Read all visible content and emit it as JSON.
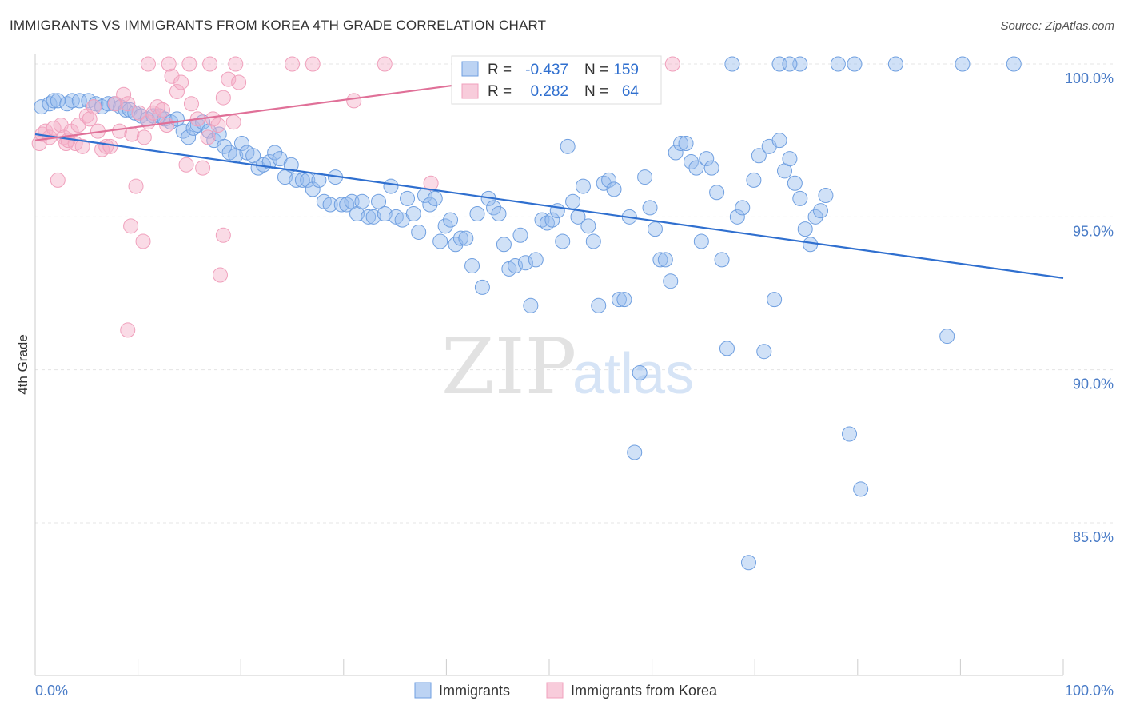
{
  "title": "IMMIGRANTS VS IMMIGRANTS FROM KOREA 4TH GRADE CORRELATION CHART",
  "source": "Source: ZipAtlas.com",
  "watermark": {
    "zip": "ZIP",
    "atlas": "atlas"
  },
  "colors": {
    "blue": "#6f9fe0",
    "blue_line": "#2f6fcf",
    "pink": "#f0a0bc",
    "pink_line": "#e07098",
    "value_blue": "#2f6fcf"
  },
  "stats": [
    {
      "r_label": "R =",
      "r_value": "-0.437",
      "n_label": "N =",
      "n_value": "159"
    },
    {
      "r_label": "R =",
      "r_value": "0.282",
      "n_label": "N =",
      "n_value": "64"
    }
  ],
  "chart_data": {
    "type": "scatter",
    "xlabel": "",
    "ylabel": "4th Grade",
    "xlim": [
      0,
      100
    ],
    "ylim": [
      80.5,
      100.5
    ],
    "x_tick_labels": [
      "0.0%",
      "100.0%"
    ],
    "y_ticks": [
      {
        "value": 100,
        "label": "100.0%"
      },
      {
        "value": 95,
        "label": "95.0%"
      },
      {
        "value": 90,
        "label": "90.0%"
      },
      {
        "value": 85,
        "label": "85.0%"
      }
    ],
    "grid": true,
    "legend_position": "bottom-center",
    "series": [
      {
        "name": "Immigrants",
        "color": "#6f9fe0",
        "trend": {
          "x": [
            0,
            100
          ],
          "y": [
            97.7,
            93.0
          ]
        },
        "points": [
          [
            0.6,
            98.6
          ],
          [
            1.4,
            98.7
          ],
          [
            1.8,
            98.8
          ],
          [
            2.2,
            98.8
          ],
          [
            3.1,
            98.7
          ],
          [
            3.6,
            98.8
          ],
          [
            4.3,
            98.8
          ],
          [
            5.2,
            98.8
          ],
          [
            5.9,
            98.7
          ],
          [
            6.5,
            98.6
          ],
          [
            7.1,
            98.7
          ],
          [
            7.7,
            98.7
          ],
          [
            8.3,
            98.6
          ],
          [
            8.8,
            98.5
          ],
          [
            9.2,
            98.5
          ],
          [
            9.7,
            98.4
          ],
          [
            10.3,
            98.3
          ],
          [
            10.9,
            98.2
          ],
          [
            11.5,
            98.3
          ],
          [
            12.1,
            98.3
          ],
          [
            12.6,
            98.2
          ],
          [
            13.2,
            98.1
          ],
          [
            13.8,
            98.2
          ],
          [
            14.4,
            97.8
          ],
          [
            14.9,
            97.6
          ],
          [
            15.4,
            97.9
          ],
          [
            15.8,
            98.0
          ],
          [
            16.3,
            98.1
          ],
          [
            16.9,
            97.8
          ],
          [
            17.4,
            97.5
          ],
          [
            17.9,
            97.7
          ],
          [
            18.4,
            97.3
          ],
          [
            18.9,
            97.1
          ],
          [
            19.5,
            97.0
          ],
          [
            20.1,
            97.4
          ],
          [
            20.6,
            97.1
          ],
          [
            21.2,
            97.0
          ],
          [
            21.7,
            96.6
          ],
          [
            22.2,
            96.7
          ],
          [
            22.8,
            96.8
          ],
          [
            23.3,
            97.1
          ],
          [
            23.8,
            96.9
          ],
          [
            24.3,
            96.3
          ],
          [
            24.9,
            96.7
          ],
          [
            25.4,
            96.2
          ],
          [
            26.0,
            96.2
          ],
          [
            26.5,
            96.2
          ],
          [
            27.0,
            95.9
          ],
          [
            27.6,
            96.2
          ],
          [
            28.1,
            95.5
          ],
          [
            28.7,
            95.4
          ],
          [
            29.2,
            96.3
          ],
          [
            29.8,
            95.4
          ],
          [
            30.3,
            95.4
          ],
          [
            30.8,
            95.5
          ],
          [
            31.3,
            95.1
          ],
          [
            31.8,
            95.5
          ],
          [
            32.4,
            95.0
          ],
          [
            32.9,
            95.0
          ],
          [
            33.4,
            95.5
          ],
          [
            34.0,
            95.1
          ],
          [
            34.6,
            96.0
          ],
          [
            35.1,
            95.0
          ],
          [
            35.7,
            94.9
          ],
          [
            36.2,
            95.6
          ],
          [
            36.8,
            95.1
          ],
          [
            37.3,
            94.5
          ],
          [
            37.9,
            95.7
          ],
          [
            38.4,
            95.4
          ],
          [
            38.9,
            95.6
          ],
          [
            39.4,
            94.2
          ],
          [
            39.9,
            94.7
          ],
          [
            40.4,
            94.9
          ],
          [
            40.9,
            94.1
          ],
          [
            41.4,
            94.3
          ],
          [
            41.9,
            94.3
          ],
          [
            42.5,
            93.4
          ],
          [
            43.0,
            95.1
          ],
          [
            43.5,
            92.7
          ],
          [
            44.1,
            95.6
          ],
          [
            44.6,
            95.3
          ],
          [
            45.1,
            95.1
          ],
          [
            45.6,
            94.1
          ],
          [
            46.1,
            93.3
          ],
          [
            46.7,
            93.4
          ],
          [
            47.2,
            94.4
          ],
          [
            47.7,
            93.5
          ],
          [
            48.2,
            92.1
          ],
          [
            48.7,
            93.6
          ],
          [
            49.3,
            94.9
          ],
          [
            49.8,
            94.8
          ],
          [
            50.3,
            94.9
          ],
          [
            50.8,
            95.2
          ],
          [
            51.3,
            94.2
          ],
          [
            51.8,
            97.3
          ],
          [
            52.3,
            95.5
          ],
          [
            52.8,
            95.0
          ],
          [
            53.3,
            96.0
          ],
          [
            53.8,
            94.7
          ],
          [
            54.3,
            94.2
          ],
          [
            54.8,
            92.1
          ],
          [
            55.3,
            96.1
          ],
          [
            55.8,
            96.2
          ],
          [
            56.3,
            95.9
          ],
          [
            56.8,
            92.3
          ],
          [
            57.3,
            92.3
          ],
          [
            57.8,
            95.0
          ],
          [
            58.3,
            87.3
          ],
          [
            58.8,
            89.9
          ],
          [
            59.3,
            96.3
          ],
          [
            59.8,
            95.3
          ],
          [
            60.3,
            94.6
          ],
          [
            60.8,
            93.6
          ],
          [
            61.3,
            93.6
          ],
          [
            61.8,
            92.9
          ],
          [
            62.3,
            97.1
          ],
          [
            62.8,
            97.4
          ],
          [
            63.3,
            97.4
          ],
          [
            63.8,
            96.8
          ],
          [
            64.3,
            96.6
          ],
          [
            64.8,
            94.2
          ],
          [
            65.3,
            96.9
          ],
          [
            65.8,
            96.6
          ],
          [
            66.3,
            95.8
          ],
          [
            66.8,
            93.6
          ],
          [
            67.3,
            90.7
          ],
          [
            67.8,
            100.0
          ],
          [
            68.3,
            95.0
          ],
          [
            68.8,
            95.3
          ],
          [
            69.4,
            83.7
          ],
          [
            69.9,
            96.2
          ],
          [
            70.4,
            97.0
          ],
          [
            70.9,
            90.6
          ],
          [
            71.4,
            97.3
          ],
          [
            71.9,
            92.3
          ],
          [
            72.4,
            97.5
          ],
          [
            72.9,
            96.5
          ],
          [
            73.4,
            96.9
          ],
          [
            73.9,
            96.1
          ],
          [
            74.4,
            95.6
          ],
          [
            74.9,
            94.6
          ],
          [
            75.4,
            94.1
          ],
          [
            75.9,
            95.0
          ],
          [
            76.4,
            95.2
          ],
          [
            76.9,
            95.7
          ],
          [
            78.1,
            100.0
          ],
          [
            79.2,
            87.9
          ],
          [
            79.7,
            100.0
          ],
          [
            80.3,
            86.1
          ],
          [
            83.7,
            100.0
          ],
          [
            88.7,
            91.1
          ],
          [
            90.2,
            100.0
          ],
          [
            95.2,
            100.0
          ],
          [
            74.4,
            100.0
          ],
          [
            72.4,
            100.0
          ],
          [
            73.4,
            100.0
          ],
          [
            45.8,
            100.0
          ],
          [
            42.9,
            100.0
          ],
          [
            48.7,
            99.4
          ]
        ]
      },
      {
        "name": "Immigrants from Korea",
        "color": "#f0a0bc",
        "trend": {
          "x": [
            0,
            56.5
          ],
          "y": [
            97.5,
            100.0
          ]
        },
        "points": [
          [
            0.4,
            97.4
          ],
          [
            0.7,
            97.7
          ],
          [
            1.0,
            97.8
          ],
          [
            1.4,
            97.6
          ],
          [
            1.8,
            97.9
          ],
          [
            2.2,
            96.2
          ],
          [
            2.5,
            98.0
          ],
          [
            2.8,
            97.6
          ],
          [
            3.0,
            97.4
          ],
          [
            3.2,
            97.5
          ],
          [
            3.5,
            97.8
          ],
          [
            3.9,
            97.4
          ],
          [
            4.2,
            98.0
          ],
          [
            4.6,
            97.3
          ],
          [
            5.0,
            98.3
          ],
          [
            5.3,
            98.2
          ],
          [
            5.7,
            98.6
          ],
          [
            6.1,
            97.8
          ],
          [
            6.5,
            97.2
          ],
          [
            6.9,
            97.3
          ],
          [
            7.3,
            97.3
          ],
          [
            7.8,
            98.7
          ],
          [
            8.2,
            97.8
          ],
          [
            8.6,
            99.0
          ],
          [
            9.0,
            98.7
          ],
          [
            9.4,
            97.7
          ],
          [
            9.8,
            96.0
          ],
          [
            10.1,
            98.4
          ],
          [
            10.6,
            97.6
          ],
          [
            11.0,
            98.1
          ],
          [
            11.5,
            98.4
          ],
          [
            11.9,
            98.6
          ],
          [
            12.4,
            98.5
          ],
          [
            12.8,
            98.0
          ],
          [
            13.3,
            99.6
          ],
          [
            13.8,
            99.1
          ],
          [
            14.2,
            99.4
          ],
          [
            14.7,
            96.7
          ],
          [
            15.2,
            98.7
          ],
          [
            15.8,
            98.2
          ],
          [
            16.3,
            96.6
          ],
          [
            16.8,
            97.6
          ],
          [
            17.3,
            98.2
          ],
          [
            17.8,
            98.0
          ],
          [
            18.3,
            98.9
          ],
          [
            18.8,
            99.5
          ],
          [
            19.3,
            98.1
          ],
          [
            19.8,
            99.4
          ],
          [
            9.3,
            94.7
          ],
          [
            10.5,
            94.2
          ],
          [
            18.3,
            94.4
          ],
          [
            18.0,
            93.1
          ],
          [
            9.0,
            91.3
          ],
          [
            11.0,
            100.0
          ],
          [
            13.0,
            100.0
          ],
          [
            15.0,
            100.0
          ],
          [
            17.0,
            100.0
          ],
          [
            19.5,
            100.0
          ],
          [
            25.0,
            100.0
          ],
          [
            27.0,
            100.0
          ],
          [
            34.0,
            100.0
          ],
          [
            31.0,
            98.8
          ],
          [
            38.5,
            96.1
          ],
          [
            62.0,
            100.0
          ]
        ]
      }
    ]
  },
  "legend": [
    {
      "label": "Immigrants",
      "color": "#6f9fe0"
    },
    {
      "label": "Immigrants from Korea",
      "color": "#f0a0bc"
    }
  ]
}
